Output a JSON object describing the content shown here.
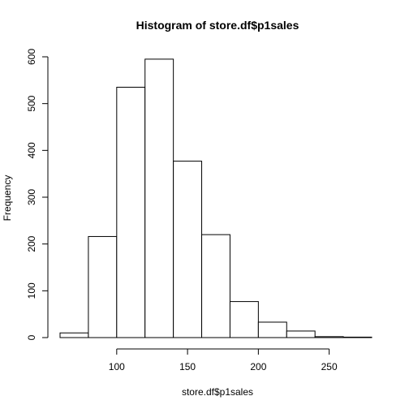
{
  "chart_data": {
    "type": "bar",
    "title": "Histogram of store.df$p1sales",
    "xlabel": "store.df$p1sales",
    "ylabel": "Frequency",
    "bins": [
      {
        "start": 60,
        "end": 80,
        "count": 10
      },
      {
        "start": 80,
        "end": 100,
        "count": 216
      },
      {
        "start": 100,
        "end": 120,
        "count": 535
      },
      {
        "start": 120,
        "end": 140,
        "count": 595
      },
      {
        "start": 140,
        "end": 160,
        "count": 377
      },
      {
        "start": 160,
        "end": 180,
        "count": 220
      },
      {
        "start": 180,
        "end": 200,
        "count": 77
      },
      {
        "start": 200,
        "end": 220,
        "count": 33
      },
      {
        "start": 220,
        "end": 240,
        "count": 14
      },
      {
        "start": 240,
        "end": 260,
        "count": 2
      },
      {
        "start": 260,
        "end": 280,
        "count": 1
      }
    ],
    "xlim": [
      60,
      280
    ],
    "ylim": [
      0,
      600
    ],
    "x_ticks": [
      100,
      150,
      200,
      250
    ],
    "y_ticks": [
      0,
      100,
      200,
      300,
      400,
      500,
      600
    ],
    "grid": false,
    "colors": {
      "bar_fill": "#ffffff",
      "bar_stroke": "#000000"
    }
  }
}
